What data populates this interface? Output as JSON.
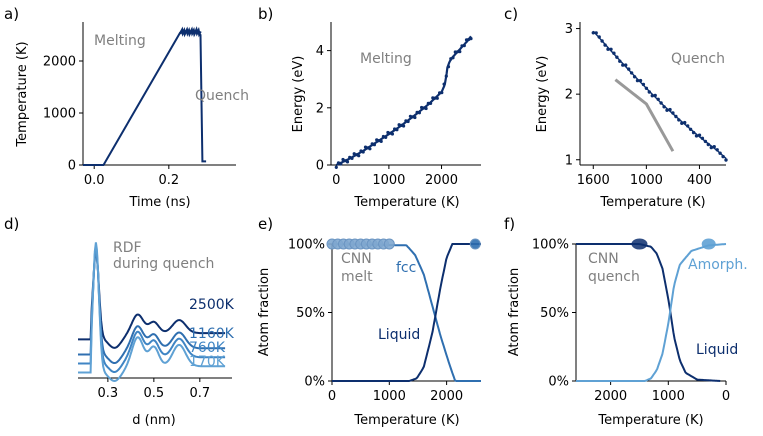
{
  "figure": {
    "panel_labels": [
      "a)",
      "b)",
      "c)",
      "d)",
      "e)",
      "f)"
    ]
  },
  "colors": {
    "dark": "#0d2f6e",
    "mid": "#2f6fb0",
    "light": "#5fa1d4",
    "gray": "#999999",
    "annot": "#808080"
  },
  "chart_data": [
    {
      "panel": "a)",
      "type": "line",
      "xlabel": "Time (ns)",
      "ylabel": "Temperature (K)",
      "xlim": [
        -0.03,
        0.38
      ],
      "ylim": [
        0,
        2750
      ],
      "xticks": [
        0.0,
        0.2
      ],
      "xtick_labels": [
        "0.0",
        "0.2"
      ],
      "yticks": [
        0,
        1000,
        2000
      ],
      "ytick_labels": [
        "0",
        "1000",
        "2000"
      ],
      "annotations": [
        "Melting",
        "Quench"
      ],
      "series": [
        {
          "name": "temperature",
          "x": [
            -0.03,
            0.025,
            0.23,
            0.24,
            0.26,
            0.275,
            0.285,
            0.29,
            0.3
          ],
          "y": [
            0,
            0,
            2540,
            2560,
            2550,
            2560,
            2500,
            70,
            70
          ]
        }
      ]
    },
    {
      "panel": "b)",
      "type": "scatter",
      "xlabel": "Temperature (K)",
      "ylabel": "Energy (eV)",
      "xlim": [
        -100,
        2750
      ],
      "ylim": [
        0,
        5
      ],
      "xticks": [
        0,
        1000,
        2000
      ],
      "xtick_labels": [
        "0",
        "1000",
        "2000"
      ],
      "yticks": [
        0,
        2,
        4
      ],
      "ytick_labels": [
        "0",
        "2",
        "4"
      ],
      "annotations": [
        "Melting"
      ],
      "series": [
        {
          "name": "energy",
          "x": [
            0,
            250,
            500,
            750,
            1000,
            1250,
            1500,
            1750,
            2000,
            2060,
            2090,
            2110,
            2150,
            2200,
            2300,
            2400,
            2500,
            2560
          ],
          "y": [
            0.0,
            0.22,
            0.48,
            0.78,
            1.08,
            1.4,
            1.75,
            2.12,
            2.55,
            2.8,
            3.1,
            3.4,
            3.6,
            3.75,
            3.95,
            4.15,
            4.35,
            4.5
          ]
        }
      ]
    },
    {
      "panel": "c)",
      "type": "scatter",
      "xlabel": "Temperature (K)",
      "ylabel": "Energy (eV)",
      "xlim": [
        1750,
        100
      ],
      "ylim": [
        0.92,
        3.1
      ],
      "xticks": [
        1600,
        1000,
        400
      ],
      "xtick_labels": [
        "1600",
        "1000",
        "400"
      ],
      "yticks": [
        1,
        2,
        3
      ],
      "ytick_labels": [
        "1",
        "2",
        "3"
      ],
      "annotations": [
        "Quench"
      ],
      "series": [
        {
          "name": "energy",
          "x": [
            1600,
            1400,
            1200,
            1000,
            800,
            600,
            400,
            200,
            100
          ],
          "y": [
            2.96,
            2.66,
            2.37,
            2.09,
            1.82,
            1.58,
            1.35,
            1.14,
            1.02
          ]
        },
        {
          "name": "fit",
          "x": [
            1350,
            1000,
            700
          ],
          "y": [
            2.22,
            1.85,
            1.13
          ]
        }
      ]
    },
    {
      "panel": "d)",
      "type": "line",
      "xlabel": "d (nm)",
      "ylabel": "",
      "xlim": [
        0.17,
        0.84
      ],
      "xticks": [
        0.3,
        0.5,
        0.7
      ],
      "xtick_labels": [
        "0.3",
        "0.5",
        "0.7"
      ],
      "annotations": [
        "RDF",
        "during quench"
      ],
      "series": [
        {
          "name": "2500K",
          "offset": 2.9
        },
        {
          "name": "1160K",
          "offset": 1.8
        },
        {
          "name": "760K",
          "offset": 1.15
        },
        {
          "name": "170K",
          "offset": 0.5
        }
      ]
    },
    {
      "panel": "e)",
      "type": "line",
      "xlabel": "Temperature (K)",
      "ylabel": "Atom fraction",
      "xlim": [
        0,
        2600
      ],
      "ylim": [
        0,
        100
      ],
      "xticks": [
        0,
        1000,
        2000
      ],
      "xtick_labels": [
        "0",
        "1000",
        "2000"
      ],
      "yticks": [
        0,
        50,
        100
      ],
      "ytick_labels": [
        "0%",
        "50%",
        "100%"
      ],
      "annotations": [
        "CNN",
        "melt",
        "fcc",
        "Liquid"
      ],
      "series": [
        {
          "name": "fcc",
          "x": [
            0,
            1300,
            1450,
            1600,
            1750,
            1900,
            2050,
            2150,
            2600
          ],
          "y": [
            100,
            99,
            92,
            78,
            55,
            32,
            12,
            0,
            0
          ]
        },
        {
          "name": "Liquid",
          "x": [
            0,
            1350,
            1480,
            1600,
            1750,
            1900,
            2000,
            2100,
            2600
          ],
          "y": [
            0,
            0,
            2,
            10,
            35,
            70,
            90,
            100,
            100
          ]
        },
        {
          "name": "markers",
          "x": [
            0,
            100,
            200,
            300,
            400,
            500,
            600,
            700,
            800,
            900,
            1000,
            2500
          ],
          "y": [
            100,
            100,
            100,
            100,
            100,
            100,
            100,
            100,
            100,
            100,
            100,
            100
          ]
        }
      ]
    },
    {
      "panel": "f)",
      "type": "line",
      "xlabel": "Temperature (K)",
      "ylabel": "Atom fraction",
      "xlim": [
        2600,
        0
      ],
      "ylim": [
        0,
        100
      ],
      "xticks": [
        2000,
        1000,
        0
      ],
      "xtick_labels": [
        "2000",
        "1000",
        "0"
      ],
      "yticks": [
        0,
        50,
        100
      ],
      "ytick_labels": [
        "0%",
        "50%",
        "100%"
      ],
      "annotations": [
        "CNN",
        "quench",
        "Amorph.",
        "Liquid"
      ],
      "series": [
        {
          "name": "Liquid",
          "x": [
            2600,
            1500,
            1300,
            1200,
            1100,
            1000,
            900,
            800,
            700,
            500,
            100
          ],
          "y": [
            100,
            100,
            98,
            93,
            82,
            60,
            32,
            15,
            6,
            1,
            0
          ]
        },
        {
          "name": "Amorph.",
          "x": [
            2600,
            1400,
            1300,
            1200,
            1100,
            1000,
            900,
            800,
            600,
            300,
            0
          ],
          "y": [
            0,
            0,
            2,
            8,
            20,
            42,
            70,
            85,
            95,
            99,
            100
          ]
        },
        {
          "name": "markers",
          "x": [
            1500,
            300
          ],
          "y": [
            100,
            100
          ]
        }
      ]
    }
  ]
}
